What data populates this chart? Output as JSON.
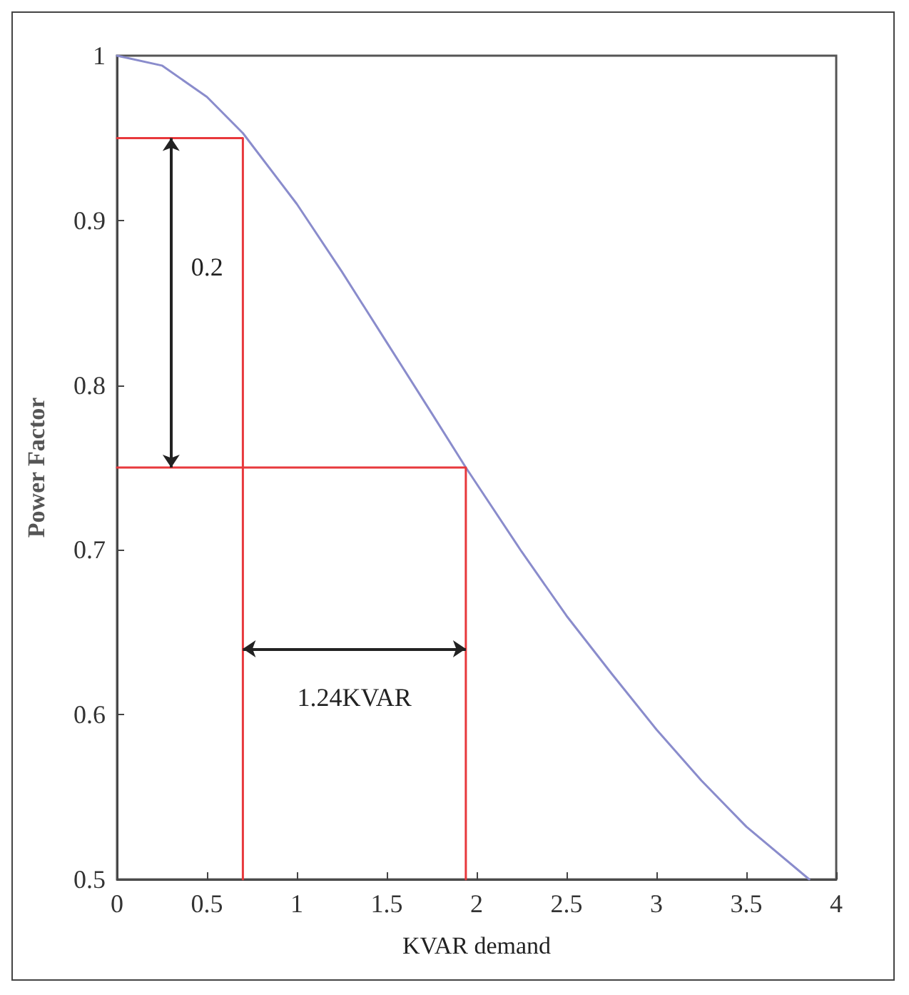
{
  "chart_data": {
    "type": "line",
    "xlabel": "KVAR demand",
    "ylabel": "Power Factor",
    "xlim": [
      0,
      4
    ],
    "ylim": [
      0.5,
      1
    ],
    "xticks": [
      0,
      0.5,
      1,
      1.5,
      2,
      2.5,
      3,
      3.5,
      4
    ],
    "yticks": [
      0.5,
      0.6,
      0.7,
      0.8,
      0.9,
      1
    ],
    "series": [
      {
        "color": "#8a8ccc",
        "x": [
          0,
          0.25,
          0.5,
          0.7,
          1,
          1.25,
          1.5,
          1.75,
          1.94,
          2.25,
          2.5,
          2.75,
          3,
          3.25,
          3.5,
          3.85
        ],
        "values": [
          1,
          0.994,
          0.975,
          0.953,
          0.91,
          0.869,
          0.826,
          0.783,
          0.75,
          0.699,
          0.66,
          0.625,
          0.591,
          0.56,
          0.532,
          0.5
        ]
      },
      {
        "color": "#e8383c",
        "x": [
          0,
          0.7,
          0.7
        ],
        "values": [
          0.95,
          0.95,
          0.5
        ]
      },
      {
        "color": "#e8383c",
        "x": [
          0,
          1.94,
          1.94
        ],
        "values": [
          0.75,
          0.75,
          0.5
        ]
      }
    ],
    "annotations": [
      "0.2",
      "1.24KVAR"
    ]
  }
}
